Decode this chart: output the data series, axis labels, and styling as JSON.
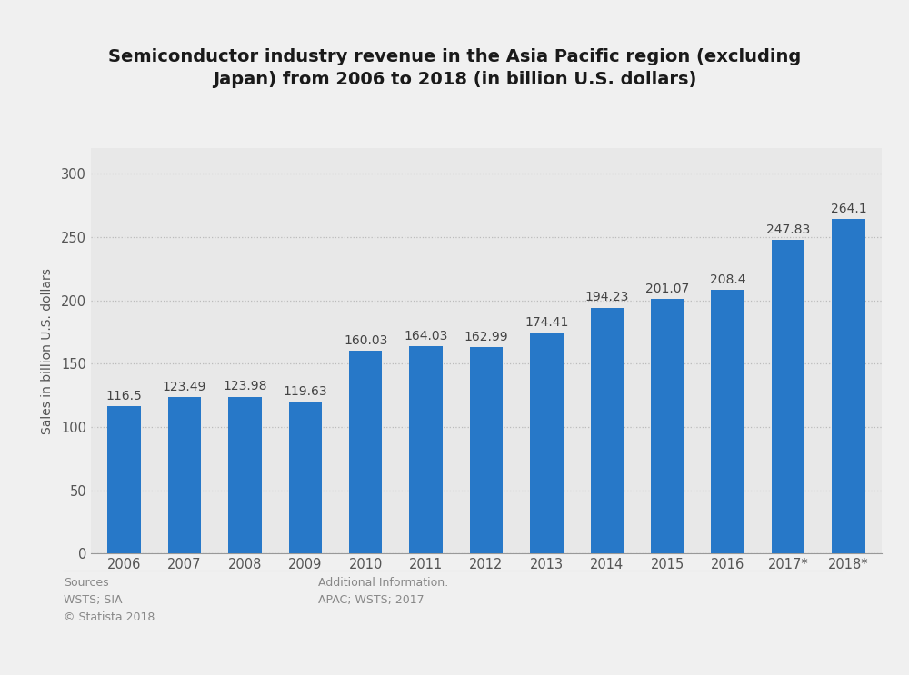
{
  "title": "Semiconductor industry revenue in the Asia Pacific region (excluding\nJapan) from 2006 to 2018 (in billion U.S. dollars)",
  "ylabel": "Sales in billion U.S. dollars",
  "categories": [
    "2006",
    "2007",
    "2008",
    "2009",
    "2010",
    "2011",
    "2012",
    "2013",
    "2014",
    "2015",
    "2016",
    "2017*",
    "2018*"
  ],
  "values": [
    116.5,
    123.49,
    123.98,
    119.63,
    160.03,
    164.03,
    162.99,
    174.41,
    194.23,
    201.07,
    208.4,
    247.83,
    264.1
  ],
  "bar_color": "#2778c8",
  "background_color": "#f0f0f0",
  "plot_bg_color": "#e8e8e8",
  "ylim": [
    0,
    320
  ],
  "yticks": [
    0,
    50,
    100,
    150,
    200,
    250,
    300
  ],
  "title_fontsize": 14,
  "ylabel_fontsize": 10,
  "tick_fontsize": 10.5,
  "value_label_fontsize": 10,
  "sources_text": "Sources\nWSTS; SIA\n© Statista 2018",
  "additional_text": "Additional Information:\nAPAC; WSTS; 2017",
  "footer_fontsize": 9
}
